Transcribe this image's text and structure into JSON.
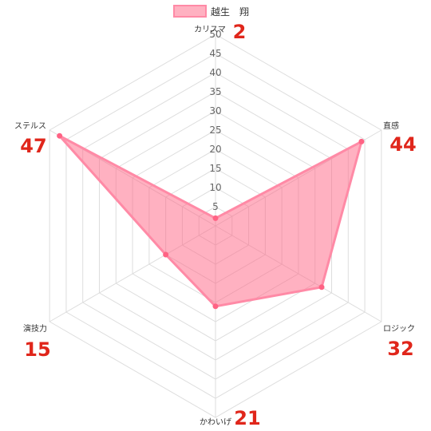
{
  "chart_data": {
    "type": "radar",
    "title": "",
    "categories": [
      "カリスマ",
      "直感",
      "ロジック",
      "かわいげ",
      "演技力",
      "ステルス"
    ],
    "series": [
      {
        "name": "越生　翔",
        "values": [
          2,
          44,
          32,
          21,
          15,
          47
        ]
      }
    ],
    "r_ticks": [
      5,
      10,
      15,
      20,
      25,
      30,
      35,
      40,
      45,
      50
    ],
    "rlim": [
      0,
      50
    ],
    "grid": true,
    "legend_position": "top",
    "colors": {
      "fill": "rgba(255,99,132,0.5)",
      "line": "#ff8aa6",
      "point": "#ff6384",
      "grid": "#dddddd",
      "value_label": "#e0261b"
    }
  }
}
